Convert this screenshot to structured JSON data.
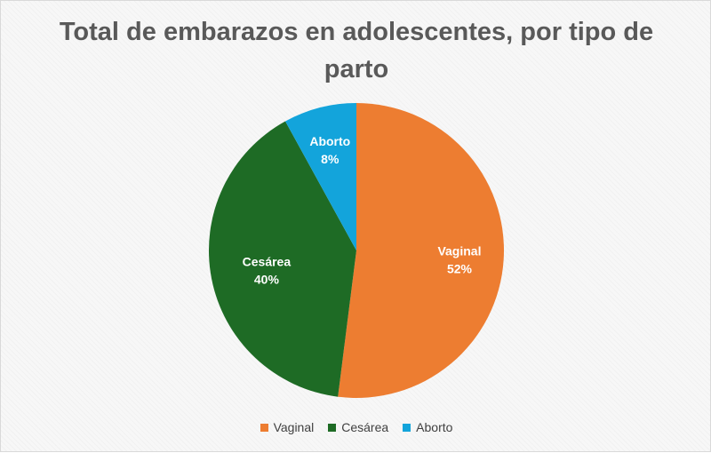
{
  "chart_data": {
    "type": "pie",
    "title": "Total de embarazos en adolescentes, por tipo de parto",
    "legend_position": "bottom",
    "slices": [
      {
        "name": "Vaginal",
        "value": 52,
        "label": "52%",
        "color": "#ED7D31"
      },
      {
        "name": "Cesárea",
        "value": 40,
        "label": "40%",
        "color": "#1E6B25"
      },
      {
        "name": "Aborto",
        "value": 8,
        "label": "8%",
        "color": "#13A4DB"
      }
    ]
  }
}
